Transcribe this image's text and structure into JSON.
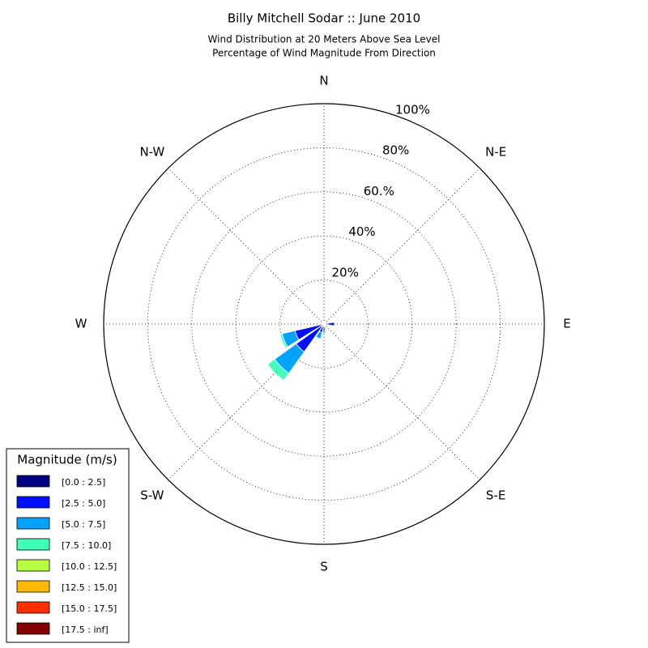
{
  "chart_data": {
    "type": "windrose",
    "title": "Billy Mitchell Sodar :: June 2010",
    "subtitle": [
      "Wind Distribution at 20 Meters Above Sea Level",
      "Percentage of Wind Magnitude From Direction"
    ],
    "categories": [
      "N",
      null,
      "N-E",
      null,
      "E",
      null,
      "S-E",
      null,
      "S",
      null,
      "S-W",
      null,
      "W",
      null,
      "N-W",
      null
    ],
    "rlim": [
      0,
      100
    ],
    "rticks": [
      {
        "value": 20,
        "label": "20%"
      },
      {
        "value": 40,
        "label": "40%"
      },
      {
        "value": 60,
        "label": "60.%"
      },
      {
        "value": 80,
        "label": "80%"
      },
      {
        "value": 100,
        "label": "100%"
      }
    ],
    "grid": true,
    "legend_title": "Magnitude (m/s)",
    "legend_position": "lower left",
    "series": [
      {
        "name": "[0.0 : 2.5]",
        "color": "#000080",
        "values": [
          0.3,
          0.2,
          0.3,
          0.5,
          0.8,
          0.3,
          0.3,
          0.5,
          1,
          1,
          1.5,
          1.5,
          0.8,
          0.3,
          0.3,
          0.2
        ]
      },
      {
        "name": "[2.5 : 5.0]",
        "color": "#0010ff",
        "values": [
          0,
          0,
          0,
          1,
          4,
          0,
          0,
          1,
          2,
          3,
          14,
          12,
          1,
          0,
          0,
          0
        ]
      },
      {
        "name": "[5.0 : 7.5]",
        "color": "#00a4ff",
        "values": [
          0,
          0,
          0,
          0,
          0,
          0,
          0,
          0,
          1,
          3,
          12,
          6,
          0,
          0,
          0,
          0
        ]
      },
      {
        "name": "[7.5 : 10.0]",
        "color": "#40ffb7",
        "values": [
          0,
          0,
          0,
          0,
          0,
          0,
          0,
          0,
          0,
          0,
          4,
          1,
          0,
          0,
          0,
          0
        ]
      },
      {
        "name": "[10.0 : 12.5]",
        "color": "#b7ff40",
        "values": [
          0,
          0,
          0,
          0,
          0,
          0,
          0,
          0,
          0,
          0,
          0,
          0,
          0,
          0,
          0,
          0
        ]
      },
      {
        "name": "[12.5 : 15.0]",
        "color": "#ffb900",
        "values": [
          0,
          0,
          0,
          0,
          0,
          0,
          0,
          0,
          0,
          0,
          0,
          0,
          0,
          0,
          0,
          0
        ]
      },
      {
        "name": "[15.0 : 17.5]",
        "color": "#ff3000",
        "values": [
          0,
          0,
          0,
          0,
          0,
          0,
          0,
          0,
          0,
          0,
          0,
          0,
          0,
          0,
          0,
          0
        ]
      },
      {
        "name": "[17.5 : inf]",
        "color": "#800000",
        "values": [
          0,
          0,
          0,
          0,
          0,
          0,
          0,
          0,
          0,
          0,
          0,
          0,
          0,
          0,
          0,
          0
        ]
      }
    ]
  }
}
